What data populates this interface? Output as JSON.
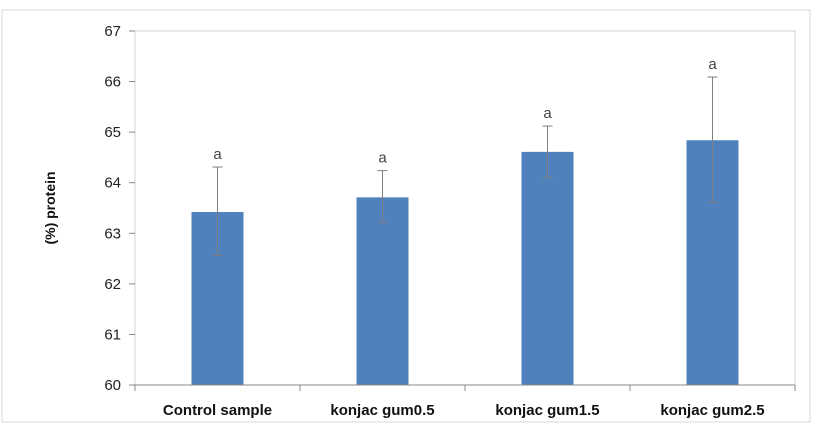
{
  "chart_data": {
    "type": "bar",
    "categories": [
      "Control sample",
      "konjac gum0.5",
      "konjac gum1.5",
      "konjac gum2.5"
    ],
    "values": [
      63.42,
      63.71,
      64.61,
      64.84
    ],
    "error_bars": [
      {
        "low": 62.56,
        "high": 64.31
      },
      {
        "low": 63.22,
        "high": 64.24
      },
      {
        "low": 64.1,
        "high": 65.12
      },
      {
        "low": 63.61,
        "high": 66.09
      }
    ],
    "significance_labels": [
      "a",
      "a",
      "a",
      "a"
    ],
    "ylabel": "(%) protein",
    "ylim": [
      60,
      67
    ],
    "yticks": [
      "60",
      "61",
      "62",
      "63",
      "64",
      "65",
      "66",
      "67"
    ],
    "grid": false,
    "colors": {
      "bar": "#4f81bd",
      "error_bar": "#7f7f7f",
      "axis": "#888888",
      "plot_border": "#d0d0d0"
    }
  }
}
